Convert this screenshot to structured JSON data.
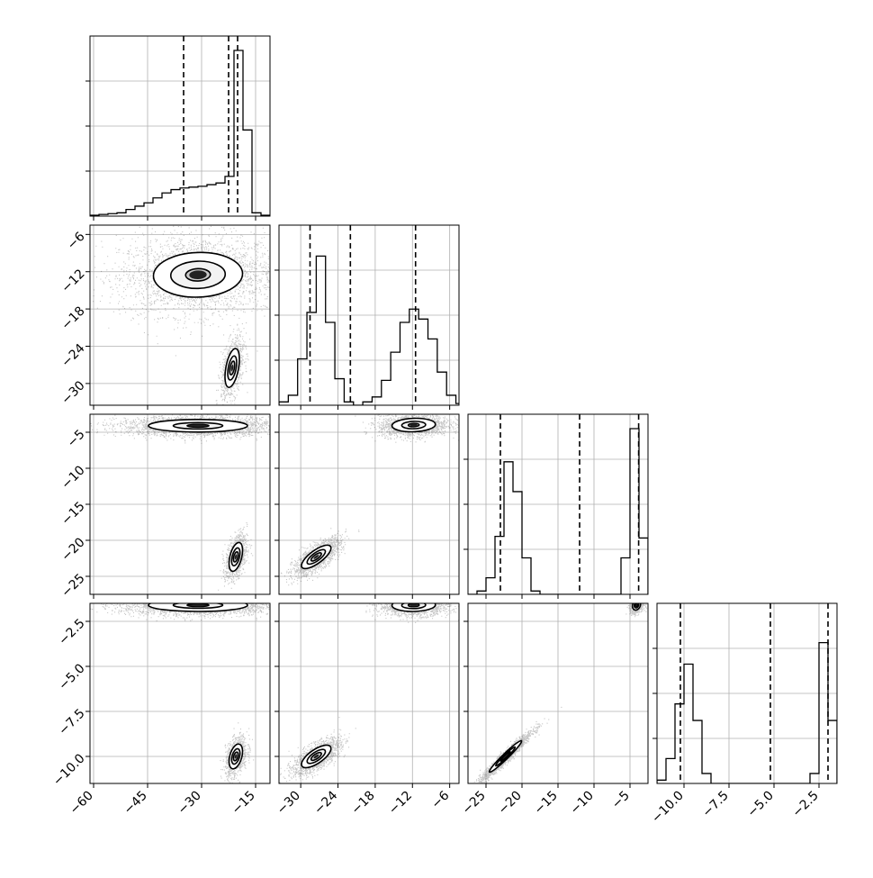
{
  "chart_data": {
    "type": "corner",
    "grid": true,
    "parameters": [
      {
        "ticks": [
          -60,
          -45,
          -30,
          -15
        ],
        "tick_labels": [
          "−60",
          "−45",
          "−30",
          "−15"
        ],
        "range": [
          -61,
          -11
        ],
        "quantile_lines": [
          -35,
          -22.5,
          -20
        ],
        "hist": {
          "edges": [
            -61,
            -58.5,
            -56,
            -53.5,
            -51,
            -48.5,
            -46,
            -43.5,
            -41,
            -38.5,
            -36,
            -33.5,
            -31,
            -28.5,
            -26,
            -23.5,
            -21,
            -18.5,
            -16,
            -13.5,
            -11
          ],
          "counts": [
            0.005,
            0.01,
            0.015,
            0.02,
            0.04,
            0.06,
            0.08,
            0.11,
            0.14,
            0.16,
            0.17,
            0.175,
            0.18,
            0.19,
            0.2,
            0.24,
            1.0,
            0.52,
            0.02,
            0.005
          ]
        }
      },
      {
        "ticks": [
          -30,
          -24,
          -18,
          -12,
          -6
        ],
        "tick_labels": [
          "−30",
          "−24",
          "−18",
          "−12",
          "−6"
        ],
        "range": [
          -33.5,
          -4.5
        ],
        "quantile_lines": [
          -28.5,
          -22,
          -11.5
        ],
        "hist": {
          "edges": [
            -33.5,
            -32,
            -30.5,
            -29,
            -27.5,
            -26,
            -24.5,
            -23,
            -21.5,
            -20,
            -18.5,
            -17,
            -15.5,
            -14,
            -12.5,
            -11,
            -9.5,
            -8,
            -6.5,
            -5,
            -3.5
          ],
          "counts": [
            0.02,
            0.06,
            0.28,
            0.56,
            0.9,
            0.5,
            0.16,
            0.02,
            0.0,
            0.02,
            0.05,
            0.15,
            0.32,
            0.5,
            0.58,
            0.52,
            0.4,
            0.2,
            0.06,
            0.01
          ]
        }
      },
      {
        "ticks": [
          -25,
          -20,
          -15,
          -10,
          -5
        ],
        "tick_labels": [
          "−25",
          "−20",
          "−15",
          "−10",
          "−5"
        ],
        "range": [
          -27.5,
          -2.5
        ],
        "quantile_lines": [
          -23,
          -12,
          -3.8
        ],
        "hist": {
          "edges": [
            -27.5,
            -26.25,
            -25,
            -23.75,
            -22.5,
            -21.25,
            -20,
            -18.75,
            -17.5,
            -16.25,
            -15,
            -13.75,
            -12.5,
            -11.25,
            -10,
            -8.75,
            -7.5,
            -6.25,
            -5,
            -3.75,
            -2.5
          ],
          "counts": [
            0.0,
            0.02,
            0.1,
            0.35,
            0.8,
            0.62,
            0.22,
            0.02,
            0.0,
            0.0,
            0.0,
            0.0,
            0.0,
            0.0,
            0.0,
            0.0,
            0.0,
            0.22,
            1.0,
            0.34
          ]
        }
      },
      {
        "ticks": [
          -10,
          -7.5,
          -5,
          -2.5
        ],
        "tick_labels": [
          "−10.0",
          "−7.5",
          "−5.0",
          "−2.5"
        ],
        "range": [
          -11.5,
          -1.5
        ],
        "quantile_lines": [
          -10.2,
          -5.2,
          -2.0
        ],
        "hist": {
          "edges": [
            -11.5,
            -11.0,
            -10.5,
            -10.0,
            -9.5,
            -9.0,
            -8.5,
            -8.0,
            -7.5,
            -7.0,
            -6.5,
            -6.0,
            -5.5,
            -5.0,
            -4.5,
            -4.0,
            -3.5,
            -3.0,
            -2.5,
            -2.0,
            -1.5
          ],
          "counts": [
            0.02,
            0.15,
            0.48,
            0.72,
            0.38,
            0.06,
            0.0,
            0.0,
            0.0,
            0.0,
            0.0,
            0.0,
            0.0,
            0.0,
            0.0,
            0.0,
            0.0,
            0.06,
            0.85,
            0.38
          ]
        }
      }
    ],
    "hist_ticks_y": [
      0.25,
      0.5,
      0.75
    ]
  }
}
